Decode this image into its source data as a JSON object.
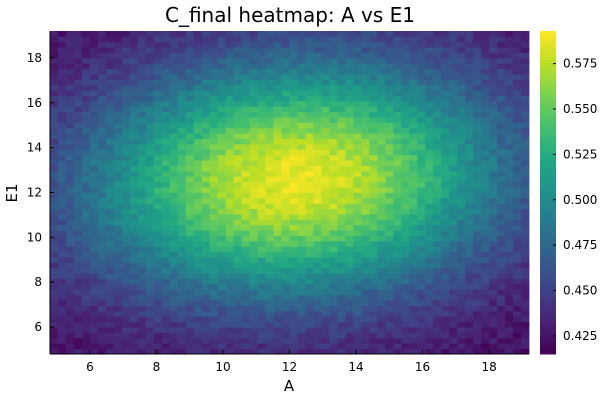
{
  "chart_data": {
    "type": "heatmap",
    "title": "C_final heatmap: A vs E1",
    "xlabel": "A",
    "ylabel": "E1",
    "xlim": [
      4.8,
      19.2
    ],
    "ylim": [
      4.8,
      19.2
    ],
    "x_ticks": [
      6,
      8,
      10,
      12,
      14,
      16,
      18
    ],
    "y_ticks": [
      6,
      8,
      10,
      12,
      14,
      16,
      18
    ],
    "grid_cols": 60,
    "grid_rows": 60,
    "colorscale": "viridis",
    "clim": [
      0.415,
      0.593
    ],
    "colorbar_ticks": [
      0.425,
      0.45,
      0.475,
      0.5,
      0.525,
      0.55,
      0.575
    ],
    "colorbar_tick_labels": [
      "0.425",
      "0.450",
      "0.475",
      "0.500",
      "0.525",
      "0.550",
      "0.575"
    ],
    "surface": {
      "peak_value": 0.588,
      "peak_x": 12.2,
      "peak_y": 12.6,
      "background": 0.418,
      "sigma_x": 4.4,
      "sigma_y": 3.7,
      "corr": 0.07,
      "noise": 0.009
    },
    "grid": true,
    "legend": "colorbar-right"
  }
}
